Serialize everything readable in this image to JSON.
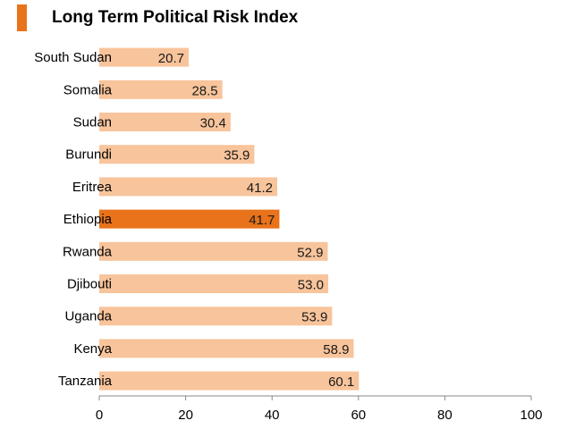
{
  "title": "Long Term Political Risk Index",
  "colors": {
    "accent": "#E8731A",
    "bar": "#F8C49B",
    "highlight": "#E8731A",
    "axis": "#888888"
  },
  "chart_data": {
    "type": "bar",
    "orientation": "horizontal",
    "title": "Long Term Political Risk Index",
    "xlabel": "",
    "ylabel": "",
    "xlim": [
      0,
      100
    ],
    "xticks": [
      0,
      20,
      40,
      60,
      80,
      100
    ],
    "tick_labels": [
      "0",
      "20",
      "40",
      "60",
      "80",
      "100"
    ],
    "categories": [
      "South Sudan",
      "Somalia",
      "Sudan",
      "Burundi",
      "Eritrea",
      "Ethiopia",
      "Rwanda",
      "Djibouti",
      "Uganda",
      "Kenya",
      "Tanzania"
    ],
    "values": [
      20.7,
      28.5,
      30.4,
      35.9,
      41.2,
      41.7,
      52.9,
      53.0,
      53.9,
      58.9,
      60.1
    ],
    "value_labels": [
      "20.7",
      "28.5",
      "30.4",
      "35.9",
      "41.2",
      "41.7",
      "52.9",
      "53.0",
      "53.9",
      "58.9",
      "60.1"
    ],
    "highlight": "Ethiopia",
    "grid": false
  }
}
